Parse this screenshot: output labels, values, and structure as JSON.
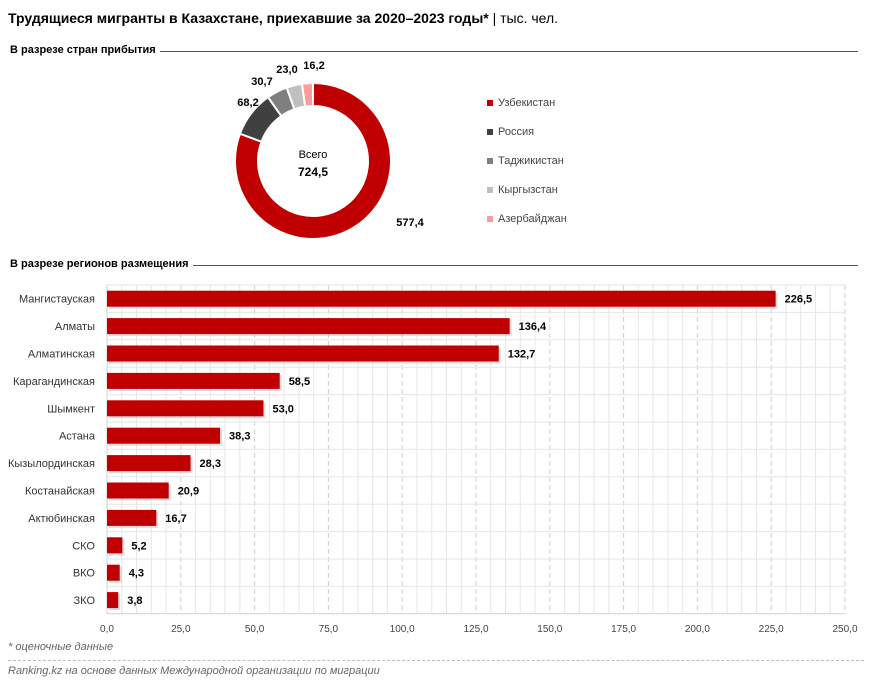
{
  "title": "Трудящиеся мигранты в Казахстане, приехавшие за 2020–2023 годы*",
  "unit": "| тыс. чел.",
  "footnote": "* оценочные данные",
  "source": "Ranking.kz на основе данных Международной организации по миграции",
  "chart_data": [
    {
      "type": "pie",
      "section_title": "В разрезе стран прибытия",
      "center_label": "Всего",
      "center_value": "724,5",
      "categories": [
        "Узбекистан",
        "Россия",
        "Таджикистан",
        "Кыргызстан",
        "Азербайджан"
      ],
      "values": [
        577.4,
        68.2,
        30.7,
        23.0,
        16.2
      ],
      "labels": [
        "577,4",
        "68,2",
        "30,7",
        "23,0",
        "16,2"
      ],
      "colors": [
        "#C00000",
        "#404040",
        "#7F7F7F",
        "#BFBFBF",
        "#FF9B9B"
      ],
      "legend": "right"
    },
    {
      "type": "bar",
      "orientation": "horizontal",
      "section_title": "В разрезе регионов размещения",
      "categories": [
        "Мангистауская",
        "Алматы",
        "Алматинская",
        "Карагандинская",
        "Шымкент",
        "Астана",
        "Кызылординская",
        "Костанайская",
        "Актюбинская",
        "СКО",
        "ВКО",
        "ЗКО"
      ],
      "values": [
        226.5,
        136.4,
        132.7,
        58.5,
        53.0,
        38.3,
        28.3,
        20.9,
        16.7,
        5.2,
        4.3,
        3.8
      ],
      "labels": [
        "226,5",
        "136,4",
        "132,7",
        "58,5",
        "53,0",
        "38,3",
        "28,3",
        "20,9",
        "16,7",
        "5,2",
        "4,3",
        "3,8"
      ],
      "xlim": [
        0,
        250
      ],
      "ticks": [
        "0,0",
        "25,0",
        "50,0",
        "75,0",
        "100,0",
        "125,0",
        "150,0",
        "175,0",
        "200,0",
        "225,0",
        "250,0"
      ],
      "color": "#C00000",
      "grid": true
    }
  ]
}
